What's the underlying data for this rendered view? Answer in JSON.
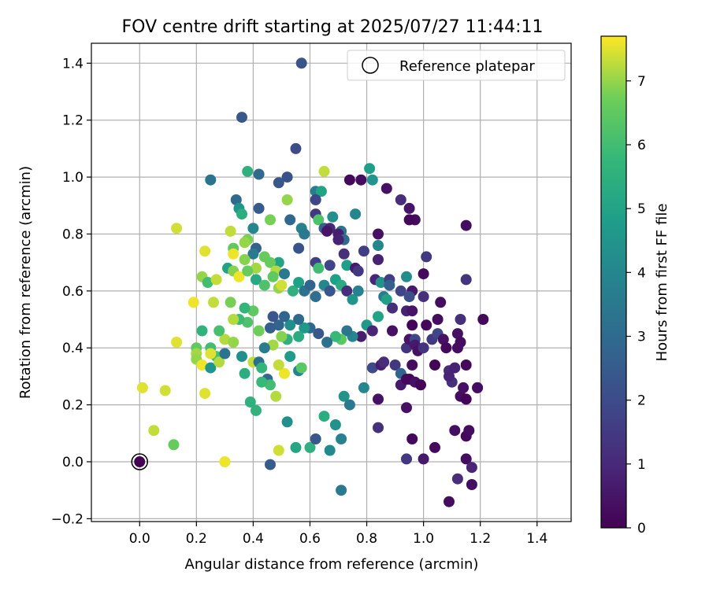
{
  "chart_data": {
    "type": "scatter",
    "title": "FOV centre drift starting at 2025/07/27 11:44:11",
    "xlabel": "Angular distance from reference (arcmin)",
    "ylabel": "Rotation from reference (arcmin)",
    "xlim": [
      -0.17,
      1.52
    ],
    "ylim": [
      -0.21,
      1.47
    ],
    "xticks": [
      "0.0",
      "0.2",
      "0.4",
      "0.6",
      "0.8",
      "1.0",
      "1.2",
      "1.4"
    ],
    "yticks": [
      "−0.2",
      "0.0",
      "0.2",
      "0.4",
      "0.6",
      "0.8",
      "1.0",
      "1.2",
      "1.4"
    ],
    "grid": true,
    "legend": {
      "placement": "top-right",
      "entries": [
        "Reference platepar"
      ]
    },
    "reference_point": {
      "x": 0.0,
      "y": 0.0
    },
    "colorbar": {
      "label": "Hours from first FF file",
      "range": [
        0,
        7.7
      ],
      "ticks": [
        "0",
        "1",
        "2",
        "3",
        "4",
        "5",
        "6",
        "7"
      ],
      "colormap": "viridis"
    },
    "points": [
      [
        0.57,
        1.4,
        2.3
      ],
      [
        0.36,
        1.21,
        2.4
      ],
      [
        0.55,
        1.1,
        2.0
      ],
      [
        0.52,
        1.0,
        2.2
      ],
      [
        0.42,
        1.01,
        3.0
      ],
      [
        0.38,
        1.02,
        5.5
      ],
      [
        0.49,
        0.98,
        2.4
      ],
      [
        0.65,
        1.02,
        7.3
      ],
      [
        0.81,
        1.03,
        4.8
      ],
      [
        0.82,
        0.99,
        4.5
      ],
      [
        0.74,
        0.99,
        0.2
      ],
      [
        0.78,
        0.99,
        0.3
      ],
      [
        0.87,
        0.96,
        0.4
      ],
      [
        0.62,
        0.95,
        3.6
      ],
      [
        0.64,
        0.95,
        5.0
      ],
      [
        0.92,
        0.92,
        1.1
      ],
      [
        0.62,
        0.92,
        1.8
      ],
      [
        0.52,
        0.92,
        7.0
      ],
      [
        0.25,
        0.99,
        3.3
      ],
      [
        0.34,
        0.92,
        3.0
      ],
      [
        0.35,
        0.89,
        4.5
      ],
      [
        0.36,
        0.87,
        5.4
      ],
      [
        0.42,
        0.89,
        2.5
      ],
      [
        0.95,
        0.89,
        0.5
      ],
      [
        0.97,
        0.85,
        0.3
      ],
      [
        0.95,
        0.85,
        0.2
      ],
      [
        0.62,
        0.87,
        1.4
      ],
      [
        0.68,
        0.86,
        4.3
      ],
      [
        0.76,
        0.87,
        4.0
      ],
      [
        0.46,
        0.85,
        6.8
      ],
      [
        0.53,
        0.85,
        2.9
      ],
      [
        0.63,
        0.85,
        6.2
      ],
      [
        0.65,
        0.82,
        2.6
      ],
      [
        0.57,
        0.82,
        3.9
      ],
      [
        0.58,
        0.8,
        3.5
      ],
      [
        0.71,
        0.81,
        3.3
      ],
      [
        0.67,
        0.82,
        1.0
      ],
      [
        0.66,
        0.81,
        0.5
      ],
      [
        0.7,
        0.8,
        0.7
      ],
      [
        0.72,
        0.78,
        3.0
      ],
      [
        0.84,
        0.8,
        0.4
      ],
      [
        1.15,
        0.83,
        0.3
      ],
      [
        0.13,
        0.82,
        7.4
      ],
      [
        0.32,
        0.81,
        7.3
      ],
      [
        0.4,
        0.82,
        4.0
      ],
      [
        0.38,
        0.78,
        6.8
      ],
      [
        0.41,
        0.75,
        2.7
      ],
      [
        0.37,
        0.77,
        7.0
      ],
      [
        0.33,
        0.75,
        6.5
      ],
      [
        0.4,
        0.73,
        3.5
      ],
      [
        0.44,
        0.72,
        6.6
      ],
      [
        0.49,
        0.7,
        5.0
      ],
      [
        0.56,
        0.75,
        2.2
      ],
      [
        0.7,
        0.78,
        0.8
      ],
      [
        0.72,
        0.73,
        1.2
      ],
      [
        0.79,
        0.74,
        1.6
      ],
      [
        0.84,
        0.76,
        4.0
      ],
      [
        0.84,
        0.71,
        0.8
      ],
      [
        0.62,
        0.7,
        1.7
      ],
      [
        0.67,
        0.69,
        1.8
      ],
      [
        0.73,
        0.69,
        4.8
      ],
      [
        0.76,
        0.68,
        0.6
      ],
      [
        0.63,
        0.68,
        6.0
      ],
      [
        0.33,
        0.73,
        7.6
      ],
      [
        0.37,
        0.71,
        6.9
      ],
      [
        0.41,
        0.68,
        7.1
      ],
      [
        0.46,
        0.7,
        6.6
      ],
      [
        0.48,
        0.67,
        7.2
      ],
      [
        0.51,
        0.66,
        3.5
      ],
      [
        0.23,
        0.74,
        7.5
      ],
      [
        0.22,
        0.65,
        7.0
      ],
      [
        0.24,
        0.63,
        6.0
      ],
      [
        0.27,
        0.64,
        7.3
      ],
      [
        0.31,
        0.68,
        5.0
      ],
      [
        0.33,
        0.67,
        6.9
      ],
      [
        0.35,
        0.65,
        7.6
      ],
      [
        0.38,
        0.67,
        6.6
      ],
      [
        0.41,
        0.64,
        5.2
      ],
      [
        0.44,
        0.62,
        6.2
      ],
      [
        0.47,
        0.65,
        6.5
      ],
      [
        0.49,
        0.61,
        7.0
      ],
      [
        0.5,
        0.62,
        7.4
      ],
      [
        0.54,
        0.6,
        5.5
      ],
      [
        0.56,
        0.63,
        4.9
      ],
      [
        0.58,
        0.6,
        3.3
      ],
      [
        0.6,
        0.62,
        2.8
      ],
      [
        0.62,
        0.58,
        3.1
      ],
      [
        0.65,
        0.62,
        4.0
      ],
      [
        0.67,
        0.6,
        2.3
      ],
      [
        0.69,
        0.64,
        4.9
      ],
      [
        0.71,
        0.62,
        5.3
      ],
      [
        0.73,
        0.6,
        1.1
      ],
      [
        0.75,
        0.57,
        4.5
      ],
      [
        0.77,
        0.6,
        3.8
      ],
      [
        0.77,
        0.67,
        1.4
      ],
      [
        0.83,
        0.64,
        0.9
      ],
      [
        0.85,
        0.63,
        4.4
      ],
      [
        0.88,
        0.64,
        1.6
      ],
      [
        0.88,
        0.62,
        2.6
      ],
      [
        0.94,
        0.65,
        4.2
      ],
      [
        0.96,
        0.6,
        0.6
      ],
      [
        1.0,
        0.66,
        0.2
      ],
      [
        1.01,
        0.72,
        1.5
      ],
      [
        0.92,
        0.6,
        1.8
      ],
      [
        0.95,
        0.58,
        2.1
      ],
      [
        1.0,
        0.58,
        1.2
      ],
      [
        0.86,
        0.58,
        3.6
      ],
      [
        0.87,
        0.57,
        4.9
      ],
      [
        0.89,
        0.54,
        1.2
      ],
      [
        0.94,
        0.53,
        0.8
      ],
      [
        0.96,
        0.53,
        0.5
      ],
      [
        1.06,
        0.56,
        0.3
      ],
      [
        1.15,
        0.64,
        1.3
      ],
      [
        1.21,
        0.5,
        0.2
      ],
      [
        1.13,
        0.5,
        1.2
      ],
      [
        1.05,
        0.5,
        0.3
      ],
      [
        1.01,
        0.48,
        0.2
      ],
      [
        0.96,
        0.48,
        0.1
      ],
      [
        0.89,
        0.46,
        0.4
      ],
      [
        0.84,
        0.51,
        5.0
      ],
      [
        0.8,
        0.48,
        4.6
      ],
      [
        0.82,
        0.46,
        0.9
      ],
      [
        0.78,
        0.44,
        0.7
      ],
      [
        0.75,
        0.44,
        4.0
      ],
      [
        0.73,
        0.46,
        3.4
      ],
      [
        0.71,
        0.43,
        6.4
      ],
      [
        0.69,
        0.44,
        5.8
      ],
      [
        0.66,
        0.42,
        3.2
      ],
      [
        0.63,
        0.45,
        2.4
      ],
      [
        0.6,
        0.47,
        2.9
      ],
      [
        0.58,
        0.47,
        4.6
      ],
      [
        0.56,
        0.5,
        3.0
      ],
      [
        0.53,
        0.48,
        4.3
      ],
      [
        0.51,
        0.51,
        2.8
      ],
      [
        0.49,
        0.48,
        2.8
      ],
      [
        0.47,
        0.51,
        2.3
      ],
      [
        0.46,
        0.47,
        2.6
      ],
      [
        0.56,
        0.44,
        5.3
      ],
      [
        0.52,
        0.43,
        5.5
      ],
      [
        0.5,
        0.44,
        6.9
      ],
      [
        0.47,
        0.41,
        7.1
      ],
      [
        0.44,
        0.4,
        3.6
      ],
      [
        0.42,
        0.46,
        6.7
      ],
      [
        0.4,
        0.53,
        6.5
      ],
      [
        0.38,
        0.49,
        6.2
      ],
      [
        0.37,
        0.54,
        5.7
      ],
      [
        0.35,
        0.5,
        5.9
      ],
      [
        0.33,
        0.5,
        7.2
      ],
      [
        0.32,
        0.56,
        6.8
      ],
      [
        0.3,
        0.43,
        7.2
      ],
      [
        0.28,
        0.46,
        6.1
      ],
      [
        0.27,
        0.37,
        6.1
      ],
      [
        0.25,
        0.4,
        6.0
      ],
      [
        0.25,
        0.38,
        7.5
      ],
      [
        0.22,
        0.46,
        5.6
      ],
      [
        0.2,
        0.4,
        6.5
      ],
      [
        0.2,
        0.38,
        7.1
      ],
      [
        0.2,
        0.36,
        7.0
      ],
      [
        0.13,
        0.42,
        7.5
      ],
      [
        0.19,
        0.56,
        7.6
      ],
      [
        0.26,
        0.56,
        7.3
      ],
      [
        0.22,
        0.34,
        7.6
      ],
      [
        0.25,
        0.33,
        4.5
      ],
      [
        0.28,
        0.35,
        7.2
      ],
      [
        0.3,
        0.38,
        3.3
      ],
      [
        0.33,
        0.42,
        7.0
      ],
      [
        0.36,
        0.37,
        4.3
      ],
      [
        0.37,
        0.31,
        5.4
      ],
      [
        0.4,
        0.35,
        7.3
      ],
      [
        0.42,
        0.35,
        3.2
      ],
      [
        0.43,
        0.33,
        5.7
      ],
      [
        0.45,
        0.29,
        2.9
      ],
      [
        0.46,
        0.27,
        6.0
      ],
      [
        0.43,
        0.28,
        5.8
      ],
      [
        0.48,
        0.23,
        7.2
      ],
      [
        0.51,
        0.31,
        7.6
      ],
      [
        0.49,
        0.34,
        7.3
      ],
      [
        0.53,
        0.37,
        4.7
      ],
      [
        0.56,
        0.32,
        3.9
      ],
      [
        0.57,
        0.33,
        6.4
      ],
      [
        0.23,
        0.24,
        7.5
      ],
      [
        0.39,
        0.21,
        5.5
      ],
      [
        0.41,
        0.18,
        5.6
      ],
      [
        0.52,
        0.14,
        4.3
      ],
      [
        0.01,
        0.26,
        7.5
      ],
      [
        0.09,
        0.25,
        7.4
      ],
      [
        0.05,
        0.11,
        7.3
      ],
      [
        0.12,
        0.06,
        6.6
      ],
      [
        0.3,
        0.0,
        7.6
      ],
      [
        0.46,
        -0.01,
        2.5
      ],
      [
        0.49,
        0.04,
        7.4
      ],
      [
        0.55,
        0.05,
        5.1
      ],
      [
        0.6,
        0.05,
        5.5
      ],
      [
        0.62,
        0.08,
        2.4
      ],
      [
        0.65,
        0.16,
        5.4
      ],
      [
        0.67,
        0.04,
        4.1
      ],
      [
        0.69,
        0.13,
        4.4
      ],
      [
        0.71,
        0.08,
        3.9
      ],
      [
        0.71,
        -0.1,
        3.5
      ],
      [
        0.72,
        0.23,
        4.4
      ],
      [
        0.74,
        0.2,
        3.5
      ],
      [
        0.79,
        0.26,
        4.0
      ],
      [
        0.82,
        0.33,
        2.0
      ],
      [
        0.84,
        0.22,
        0.4
      ],
      [
        0.84,
        0.12,
        1.2
      ],
      [
        0.85,
        0.34,
        0.7
      ],
      [
        0.86,
        0.35,
        1.1
      ],
      [
        0.9,
        0.34,
        1.4
      ],
      [
        0.92,
        0.31,
        2.8
      ],
      [
        0.92,
        0.27,
        0.6
      ],
      [
        0.94,
        0.29,
        0.2
      ],
      [
        0.94,
        0.4,
        1.3
      ],
      [
        0.95,
        0.43,
        0.5
      ],
      [
        0.97,
        0.43,
        1.9
      ],
      [
        0.97,
        0.41,
        0.6
      ],
      [
        0.98,
        0.39,
        0.4
      ],
      [
        1.0,
        0.4,
        1.3
      ],
      [
        1.03,
        0.43,
        1.5
      ],
      [
        1.05,
        0.45,
        1.8
      ],
      [
        1.07,
        0.43,
        0.4
      ],
      [
        1.08,
        0.4,
        0.2
      ],
      [
        1.09,
        0.32,
        1.1
      ],
      [
        1.11,
        0.33,
        0.8
      ],
      [
        1.12,
        0.4,
        0.3
      ],
      [
        1.12,
        0.45,
        0.4
      ],
      [
        1.13,
        0.42,
        0.3
      ],
      [
        1.15,
        0.34,
        0.2
      ],
      [
        1.1,
        0.28,
        1.2
      ],
      [
        1.09,
        0.3,
        0.9
      ],
      [
        1.13,
        0.23,
        0.3
      ],
      [
        1.14,
        0.26,
        0.4
      ],
      [
        1.15,
        0.22,
        0.1
      ],
      [
        1.19,
        0.26,
        1.4
      ],
      [
        1.19,
        0.26,
        0.3
      ],
      [
        1.04,
        0.34,
        0.1
      ],
      [
        0.96,
        0.34,
        0.3
      ],
      [
        0.95,
        0.29,
        0.2
      ],
      [
        0.97,
        0.28,
        0.4
      ],
      [
        0.99,
        0.27,
        0.1
      ],
      [
        0.94,
        0.19,
        0.4
      ],
      [
        0.96,
        0.08,
        0.2
      ],
      [
        0.94,
        0.01,
        1.4
      ],
      [
        1.0,
        0.01,
        0.6
      ],
      [
        1.04,
        0.05,
        0.2
      ],
      [
        1.09,
        -0.14,
        0.3
      ],
      [
        1.12,
        -0.06,
        1.1
      ],
      [
        1.11,
        0.11,
        0.3
      ],
      [
        1.15,
        0.09,
        0.2
      ],
      [
        1.16,
        0.11,
        0.3
      ],
      [
        1.15,
        0.01,
        0.3
      ],
      [
        1.17,
        -0.02,
        0.9
      ],
      [
        1.17,
        -0.08,
        0.3
      ]
    ]
  }
}
